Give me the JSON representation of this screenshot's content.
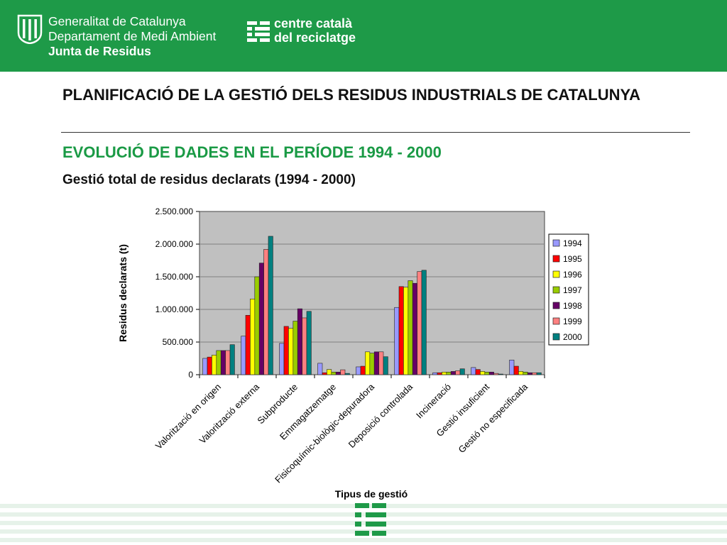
{
  "header": {
    "gen_line1": "Generalitat de Catalunya",
    "gen_line2": "Departament de Medi Ambient",
    "gen_line3": "Junta de Residus",
    "ccr_line1": "centre català",
    "ccr_line2": "del reciclatge",
    "logo_icon": "generalitat-logo-icon",
    "ccr_icon": "ccr-logo-icon",
    "color": "#1e9a48"
  },
  "title": "PLANIFICACIÓ DE LA GESTIÓ DELS RESIDUS INDUSTRIALS DE CATALUNYA",
  "subtitle": "EVOLUCIÓ DE DADES EN EL PERÍODE 1994 - 2000",
  "subtitle_color": "#1a9a45",
  "chart_data": {
    "type": "bar",
    "title": "Gestió total de residus declarats (1994 - 2000)",
    "xlabel": "Tipus de gestió",
    "ylabel": "Residus declarats (t)",
    "ylim": [
      0,
      2500000
    ],
    "yticks": [
      0,
      500000,
      1000000,
      1500000,
      2000000,
      2500000
    ],
    "ytick_labels": [
      "0",
      "500.000",
      "1.000.000",
      "1.500.000",
      "2.000.000",
      "2.500.000"
    ],
    "grid": true,
    "legend": "right",
    "categories": [
      "Valorització en origen",
      "Valorització externa",
      "Subproducte",
      "Emmagatzematge",
      "Fisicoquímic-biològic-depuradora",
      "Deposició controlada",
      "Incineració",
      "Gestió insuficient",
      "Gestió no especificada"
    ],
    "series": [
      {
        "name": "1994",
        "color": "#9999ff",
        "values": [
          250000,
          590000,
          480000,
          175000,
          120000,
          1030000,
          30000,
          110000,
          225000
        ]
      },
      {
        "name": "1995",
        "color": "#ff0000",
        "values": [
          270000,
          910000,
          740000,
          30000,
          130000,
          1350000,
          30000,
          80000,
          130000
        ]
      },
      {
        "name": "1996",
        "color": "#ffff00",
        "values": [
          300000,
          1160000,
          710000,
          80000,
          350000,
          1340000,
          40000,
          50000,
          50000
        ]
      },
      {
        "name": "1997",
        "color": "#99cc00",
        "values": [
          370000,
          1500000,
          820000,
          40000,
          330000,
          1440000,
          40000,
          40000,
          40000
        ]
      },
      {
        "name": "1998",
        "color": "#660066",
        "values": [
          370000,
          1710000,
          1010000,
          40000,
          350000,
          1400000,
          50000,
          40000,
          30000
        ]
      },
      {
        "name": "1999",
        "color": "#ff8080",
        "values": [
          370000,
          1920000,
          870000,
          75000,
          350000,
          1580000,
          60000,
          20000,
          30000
        ]
      },
      {
        "name": "2000",
        "color": "#008080",
        "values": [
          460000,
          2120000,
          970000,
          20000,
          275000,
          1600000,
          90000,
          10000,
          30000
        ]
      }
    ],
    "plot_bg": "#c0c0c0"
  }
}
